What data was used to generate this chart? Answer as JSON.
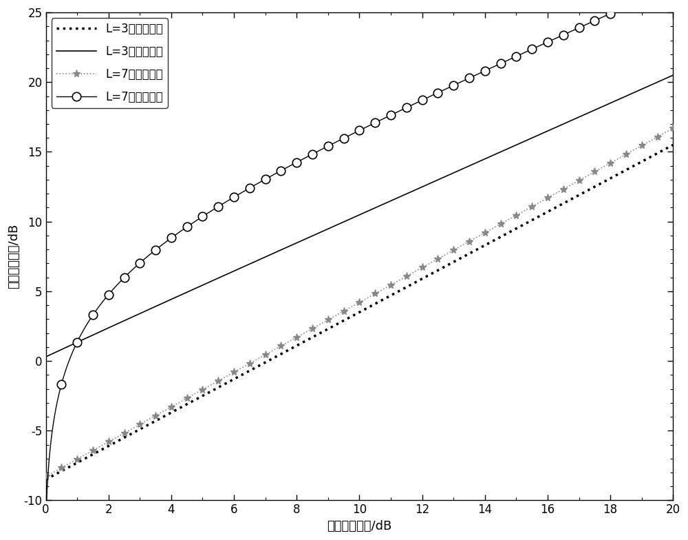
{
  "title": "",
  "xlabel": "总信噪比约束/dB",
  "ylabel": "接收端信噪比/dB",
  "xlim": [
    0,
    20
  ],
  "ylim": [
    -10,
    25
  ],
  "xticks": [
    0,
    2,
    4,
    6,
    8,
    10,
    12,
    14,
    16,
    18,
    20
  ],
  "yticks": [
    -10,
    -5,
    0,
    5,
    10,
    15,
    20,
    25
  ],
  "legend_entries": [
    "L=3时放大转发",
    "L=3时压缩转发",
    "L=7时放大转发",
    "L=7时压缩转发"
  ],
  "background_color": "#ffffff",
  "L3_AF_slope": 1.2,
  "L3_AF_intercept": -8.5,
  "L7_AF_slope": 1.25,
  "L7_AF_intercept": -8.3,
  "L3_CF_C": 1.123,
  "L3_CF_D": -0.052,
  "L7_CF_C": 5.0,
  "L7_CF_D": -4.929
}
